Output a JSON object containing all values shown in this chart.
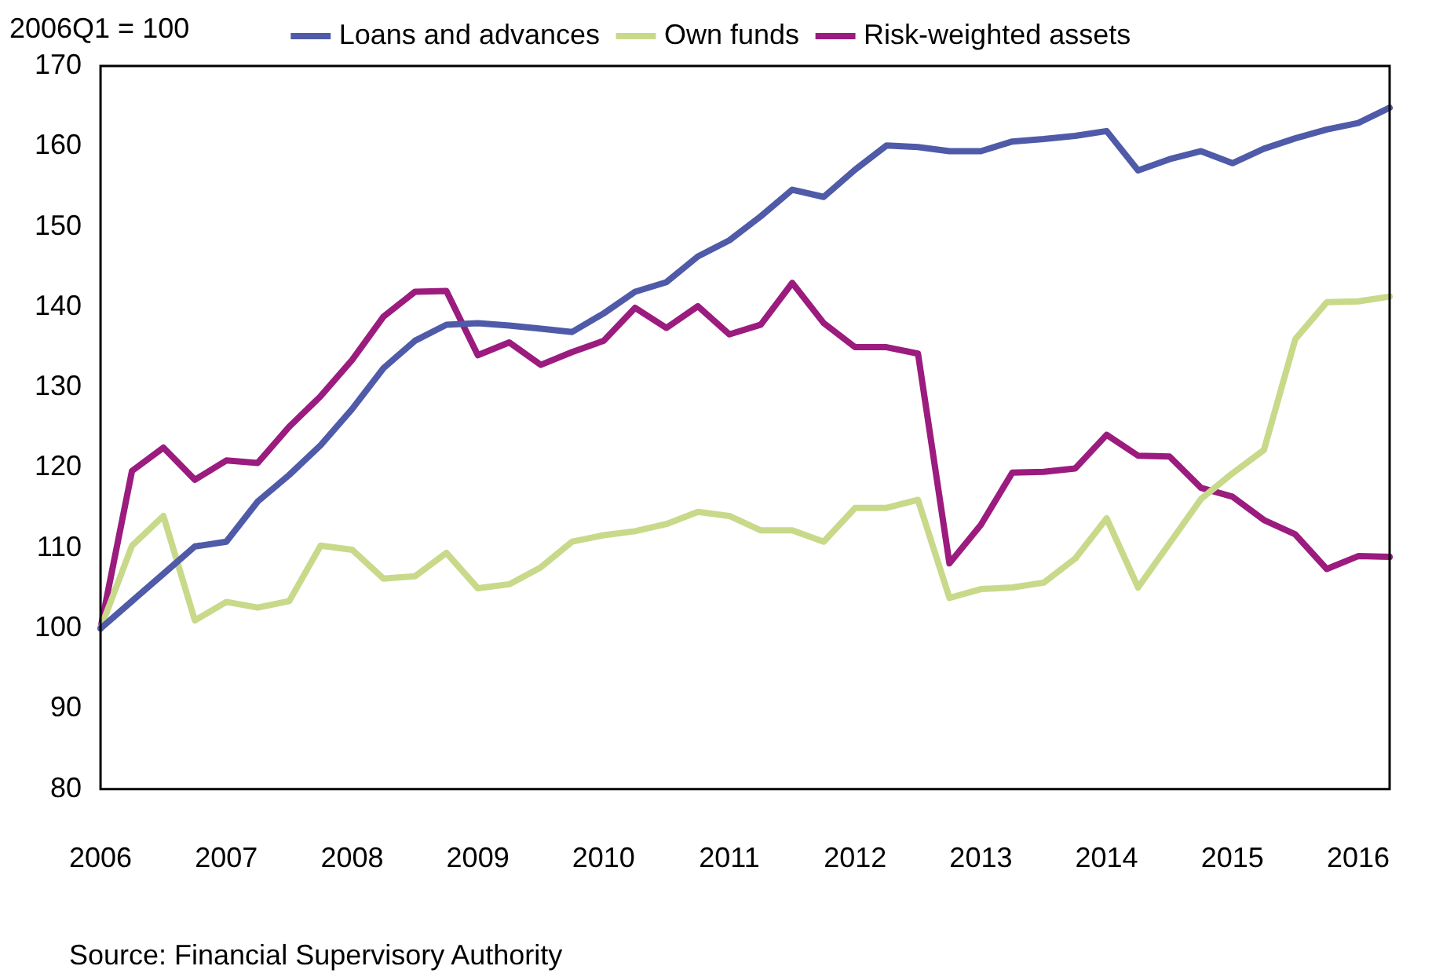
{
  "chart_data": {
    "type": "line",
    "ylabel": "2006Q1 = 100",
    "annotations": [
      "Source: Financial Supervisory Authority"
    ],
    "categories": [
      "2006",
      null,
      null,
      null,
      "2007",
      null,
      null,
      null,
      "2008",
      null,
      null,
      null,
      "2009",
      null,
      null,
      null,
      "2010",
      null,
      null,
      null,
      "2011",
      null,
      null,
      null,
      "2012",
      null,
      null,
      null,
      "2013",
      null,
      null,
      null,
      "2014",
      null,
      null,
      null,
      "2015",
      null,
      null,
      null,
      "2016",
      null
    ],
    "series": [
      {
        "name": "Loans and advances",
        "color": "#4f5aa8",
        "values": [
          100,
          103.4,
          106.8,
          110.2,
          110.8,
          115.8,
          119.1,
          122.8,
          127.3,
          132.4,
          135.8,
          137.8,
          138,
          137.7,
          137.3,
          136.9,
          139.2,
          141.9,
          143.1,
          146.3,
          148.3,
          151.3,
          154.6,
          153.7,
          157.1,
          160.1,
          159.9,
          159.4,
          159.4,
          160.6,
          160.9,
          161.3,
          161.9,
          157,
          158.4,
          159.4,
          157.9,
          159.7,
          161,
          162.1,
          162.9,
          164.8
        ]
      },
      {
        "name": "Own funds",
        "color": "#c8d98a",
        "values": [
          100,
          110.3,
          114,
          101,
          103.3,
          102.6,
          103.4,
          110.3,
          109.8,
          106.2,
          106.5,
          109.4,
          105,
          105.5,
          107.6,
          110.8,
          111.6,
          112.1,
          113,
          114.5,
          114,
          112.2,
          112.2,
          110.8,
          115,
          115,
          116,
          103.8,
          104.9,
          105.1,
          105.7,
          108.7,
          113.7,
          105.1,
          110.6,
          116.1,
          119.3,
          122.2,
          136,
          140.6,
          140.7,
          141.3
        ]
      },
      {
        "name": "Risk-weighted assets",
        "color": "#9b1b7e",
        "values": [
          100,
          119.6,
          122.5,
          118.5,
          120.9,
          120.6,
          125.1,
          128.9,
          133.4,
          138.8,
          141.9,
          142,
          134,
          135.6,
          132.8,
          134.4,
          135.8,
          139.9,
          137.4,
          140.1,
          136.6,
          137.8,
          143,
          138,
          135,
          135,
          134.2,
          108.1,
          112.9,
          119.4,
          119.5,
          119.9,
          124.1,
          121.5,
          121.4,
          117.5,
          116.4,
          113.5,
          111.7,
          107.4,
          109,
          108.9
        ]
      }
    ],
    "ylim": [
      80,
      170
    ],
    "yticks": [
      80,
      90,
      100,
      110,
      120,
      130,
      140,
      150,
      160,
      170
    ],
    "grid": false,
    "legend": "top",
    "marker": "none",
    "line_style": "solid"
  }
}
